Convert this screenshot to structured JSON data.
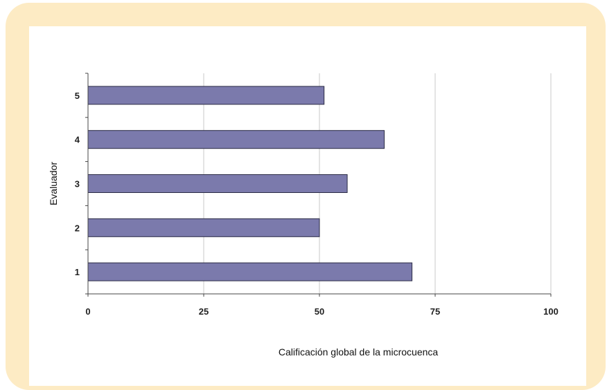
{
  "colors": {
    "frame": "#fdebc4",
    "bar": "#7b7aac",
    "bar_stroke": "#2a2a44",
    "gridline": "#c8c8c8",
    "axis": "#444444"
  },
  "chart_data": {
    "type": "bar",
    "orientation": "horizontal",
    "title": "",
    "xlabel": "Calificación global de la microcuenca",
    "ylabel": "Evaluador",
    "categories": [
      "1",
      "2",
      "3",
      "4",
      "5"
    ],
    "values": [
      70,
      50,
      56,
      64,
      51
    ],
    "xlim": [
      0,
      100
    ],
    "xticks": [
      "0",
      "25",
      "50",
      "75",
      "100"
    ],
    "grid": "vertical",
    "legend": "none"
  }
}
